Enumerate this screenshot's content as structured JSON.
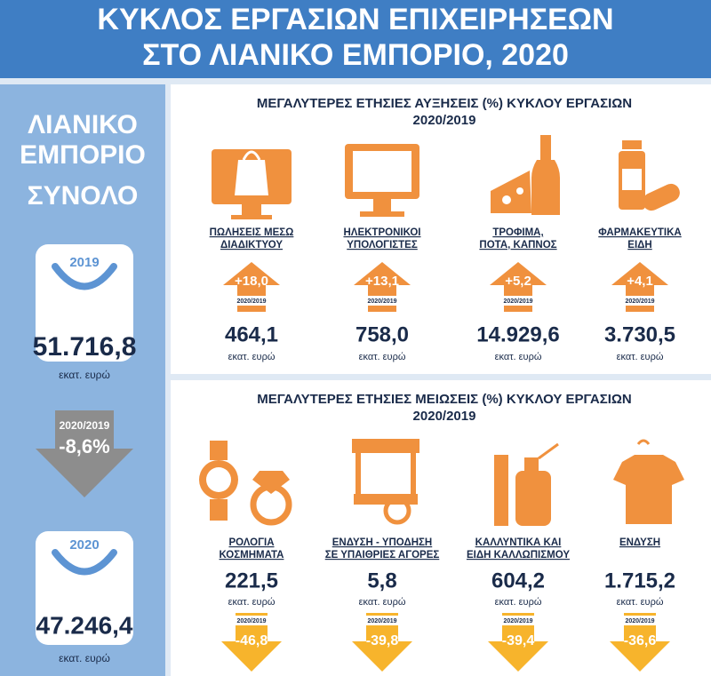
{
  "header": {
    "title": [
      "ΚΥΚΛΟΣ ΕΡΓΑΣΙΩΝ ΕΠΙΧΕΙΡΗΣΕΩΝ",
      "ΣΤΟ ΛΙΑΝΙΚΟ ΕΜΠΟΡΙΟ, 2020"
    ]
  },
  "sidebar": {
    "title": [
      "ΛΙΑΝΙΚΟ",
      "ΕΜΠΟΡΙΟ"
    ],
    "subtitle": "ΣΥΝΟΛΟ",
    "before": {
      "year": "2019",
      "value": "51.716,8",
      "unit": "εκατ. ευρώ"
    },
    "change": {
      "period": "2020/2019",
      "value": "-8,6%"
    },
    "after": {
      "year": "2020",
      "value": "47.246,4",
      "unit": "εκατ. ευρώ"
    }
  },
  "increases": {
    "title": "ΜΕΓΑΛΥΤΕΡΕΣ ΕΤΗΣΙΕΣ ΑΥΞΗΣΕΙΣ (%) ΚΥΚΛΟΥ ΕΡΓΑΣΙΩΝ",
    "period": "2020/2019",
    "items": [
      {
        "label": [
          "ΠΩΛΗΣΕΙΣ ΜΕΣΩ",
          "ΔΙΑΔΙΚΤΥΟΥ"
        ],
        "change": "+18,0",
        "period": "2020/2019",
        "value": "464,1",
        "unit": "εκατ. ευρώ"
      },
      {
        "label": [
          "ΗΛΕΚΤΡΟΝΙΚΟΙ",
          "ΥΠΟΛΟΓΙΣΤΕΣ"
        ],
        "change": "+13,1",
        "period": "2020/2019",
        "value": "758,0",
        "unit": "εκατ. ευρώ"
      },
      {
        "label": [
          "ΤΡΟΦΙΜΑ,",
          "ΠΟΤΑ, ΚΑΠΝΟΣ"
        ],
        "change": "+5,2",
        "period": "2020/2019",
        "value": "14.929,6",
        "unit": "εκατ. ευρώ"
      },
      {
        "label": [
          "ΦΑΡΜΑΚΕΥΤΙΚΑ",
          "ΕΙΔΗ"
        ],
        "change": "+4,1",
        "period": "2020/2019",
        "value": "3.730,5",
        "unit": "εκατ. ευρώ"
      }
    ]
  },
  "decreases": {
    "title": "ΜΕΓΑΛΥΤΕΡΕΣ ΕΤΗΣΙΕΣ ΜΕΙΩΣΕΙΣ (%) ΚΥΚΛΟΥ ΕΡΓΑΣΙΩΝ",
    "period": "2020/2019",
    "items": [
      {
        "label": [
          "ΡΟΛΟΓΙΑ",
          "ΚΟΣΜΗΜΑΤΑ"
        ],
        "change": "-46,8",
        "period": "2020/2019",
        "value": "221,5",
        "unit": "εκατ. ευρώ"
      },
      {
        "label": [
          "ΕΝΔΥΣΗ - ΥΠΟΔΗΣΗ",
          "ΣΕ ΥΠΑΙΘΡΙΕΣ ΑΓΟΡΕΣ"
        ],
        "change": "-39,8",
        "period": "2020/2019",
        "value": "5,8",
        "unit": "εκατ. ευρώ"
      },
      {
        "label": [
          "ΚΑΛΛΥΝΤΙΚΑ ΚΑΙ",
          "ΕΙΔΗ ΚΑΛΛΩΠΙΣΜΟΥ"
        ],
        "change": "-39,4",
        "period": "2020/2019",
        "value": "604,2",
        "unit": "εκατ. ευρώ"
      },
      {
        "label": [
          "ΕΝΔΥΣΗ"
        ],
        "change": "-36,6",
        "period": "2020/2019",
        "value": "1.715,2",
        "unit": "εκατ. ευρώ"
      }
    ]
  }
}
